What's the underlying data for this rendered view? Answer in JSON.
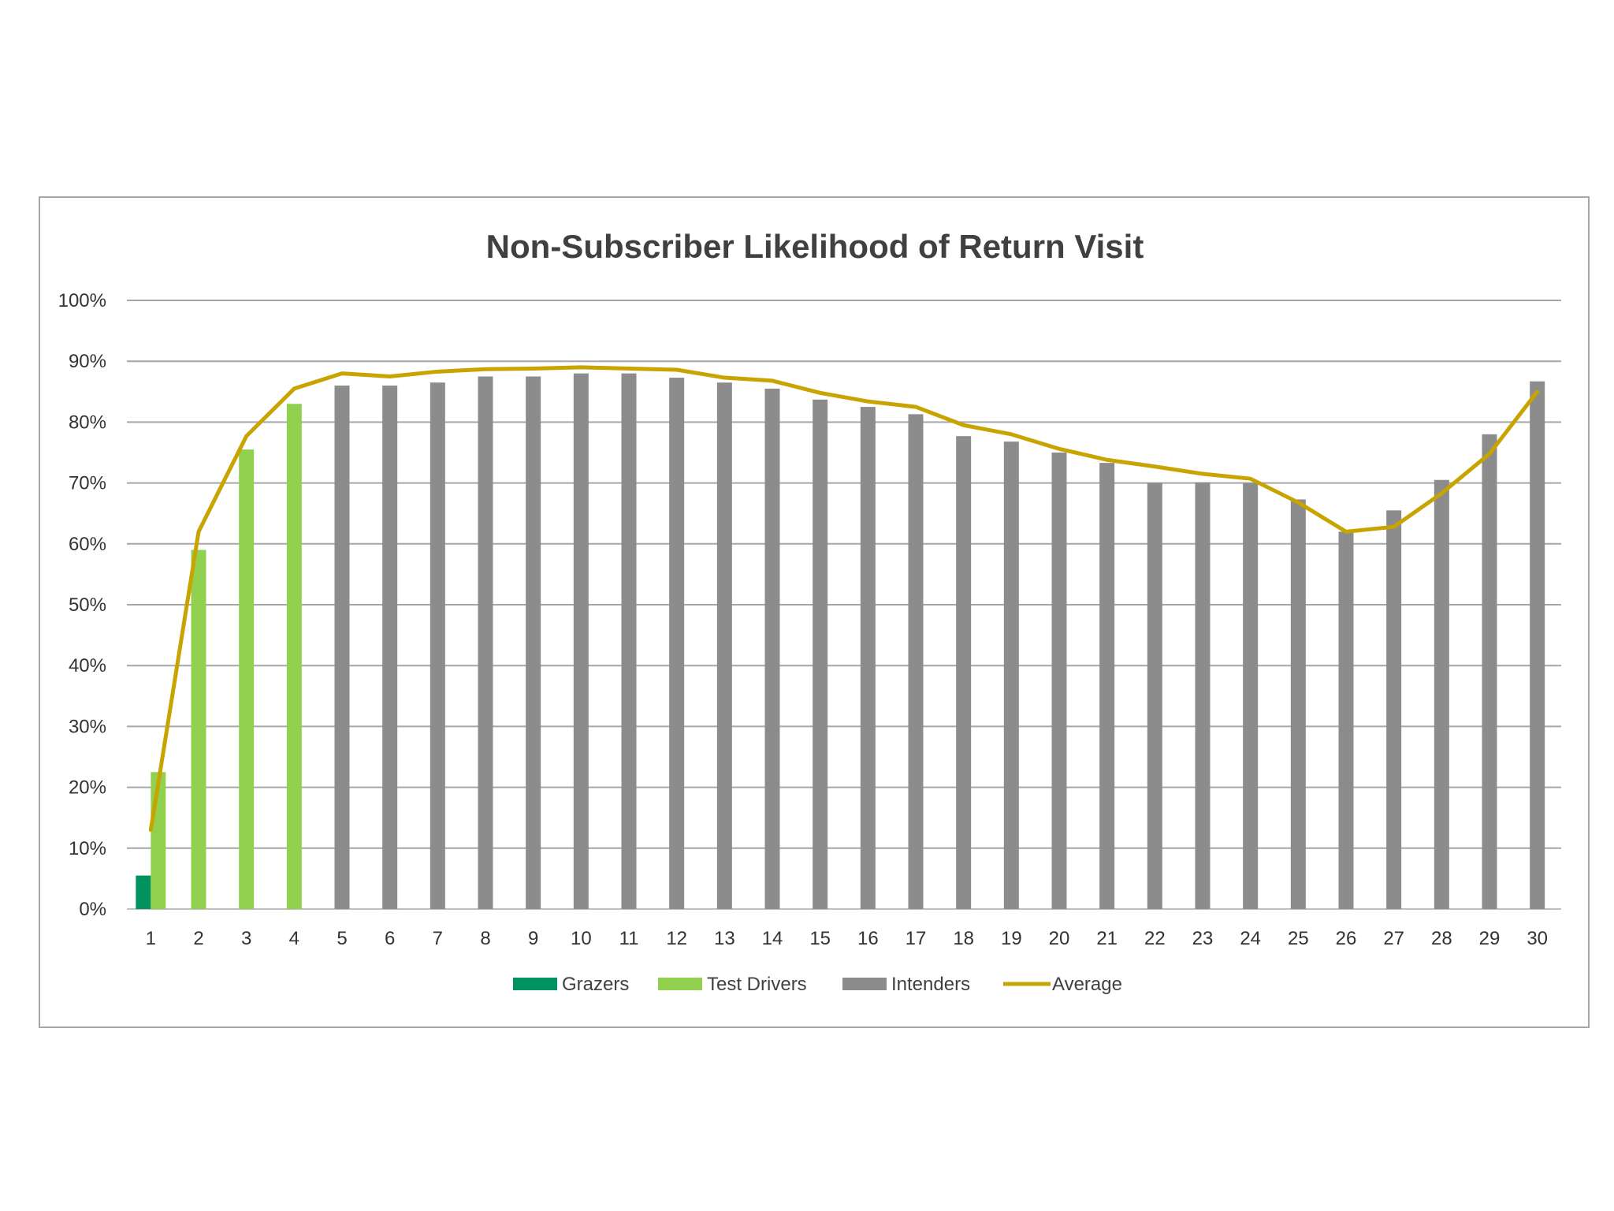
{
  "chart_data": {
    "type": "bar",
    "title": "Non-Subscriber Likelihood of Return Visit",
    "xlabel": "",
    "ylabel": "",
    "ylim": [
      0,
      100
    ],
    "yticks": [
      "0%",
      "10%",
      "20%",
      "30%",
      "40%",
      "50%",
      "60%",
      "70%",
      "80%",
      "90%",
      "100%"
    ],
    "categories": [
      "1",
      "2",
      "3",
      "4",
      "5",
      "6",
      "7",
      "8",
      "9",
      "10",
      "11",
      "12",
      "13",
      "14",
      "15",
      "16",
      "17",
      "18",
      "19",
      "20",
      "21",
      "22",
      "23",
      "24",
      "25",
      "26",
      "27",
      "28",
      "29",
      "30"
    ],
    "grid": true,
    "legend_position": "bottom",
    "series": [
      {
        "name": "Grazers",
        "type": "bar",
        "color": "#00935f",
        "values": [
          5.5,
          null,
          null,
          null,
          null,
          null,
          null,
          null,
          null,
          null,
          null,
          null,
          null,
          null,
          null,
          null,
          null,
          null,
          null,
          null,
          null,
          null,
          null,
          null,
          null,
          null,
          null,
          null,
          null,
          null
        ]
      },
      {
        "name": "Test Drivers",
        "type": "bar",
        "color": "#92d050",
        "values": [
          22.5,
          59,
          75.5,
          83,
          null,
          null,
          null,
          null,
          null,
          null,
          null,
          null,
          null,
          null,
          null,
          null,
          null,
          null,
          null,
          null,
          null,
          null,
          null,
          null,
          null,
          null,
          null,
          null,
          null,
          null
        ]
      },
      {
        "name": "Intenders",
        "type": "bar",
        "color": "#8c8c8c",
        "values": [
          null,
          null,
          null,
          null,
          86,
          86,
          86.5,
          87.5,
          87.5,
          88,
          88,
          87.3,
          86.5,
          85.5,
          83.7,
          82.5,
          81.3,
          77.7,
          76.8,
          75,
          73.3,
          70,
          70.1,
          70,
          67.3,
          62,
          65.5,
          70.5,
          78,
          86.7
        ]
      },
      {
        "name": "Average",
        "type": "line",
        "color": "#c8a400",
        "values": [
          13,
          62,
          77.7,
          85.5,
          88,
          87.5,
          88.3,
          88.7,
          88.8,
          89,
          88.8,
          88.6,
          87.3,
          86.8,
          84.8,
          83.4,
          82.5,
          79.5,
          78,
          75.6,
          73.8,
          72.7,
          71.5,
          70.7,
          66.8,
          62,
          62.8,
          68.3,
          74.8,
          85
        ]
      }
    ]
  }
}
